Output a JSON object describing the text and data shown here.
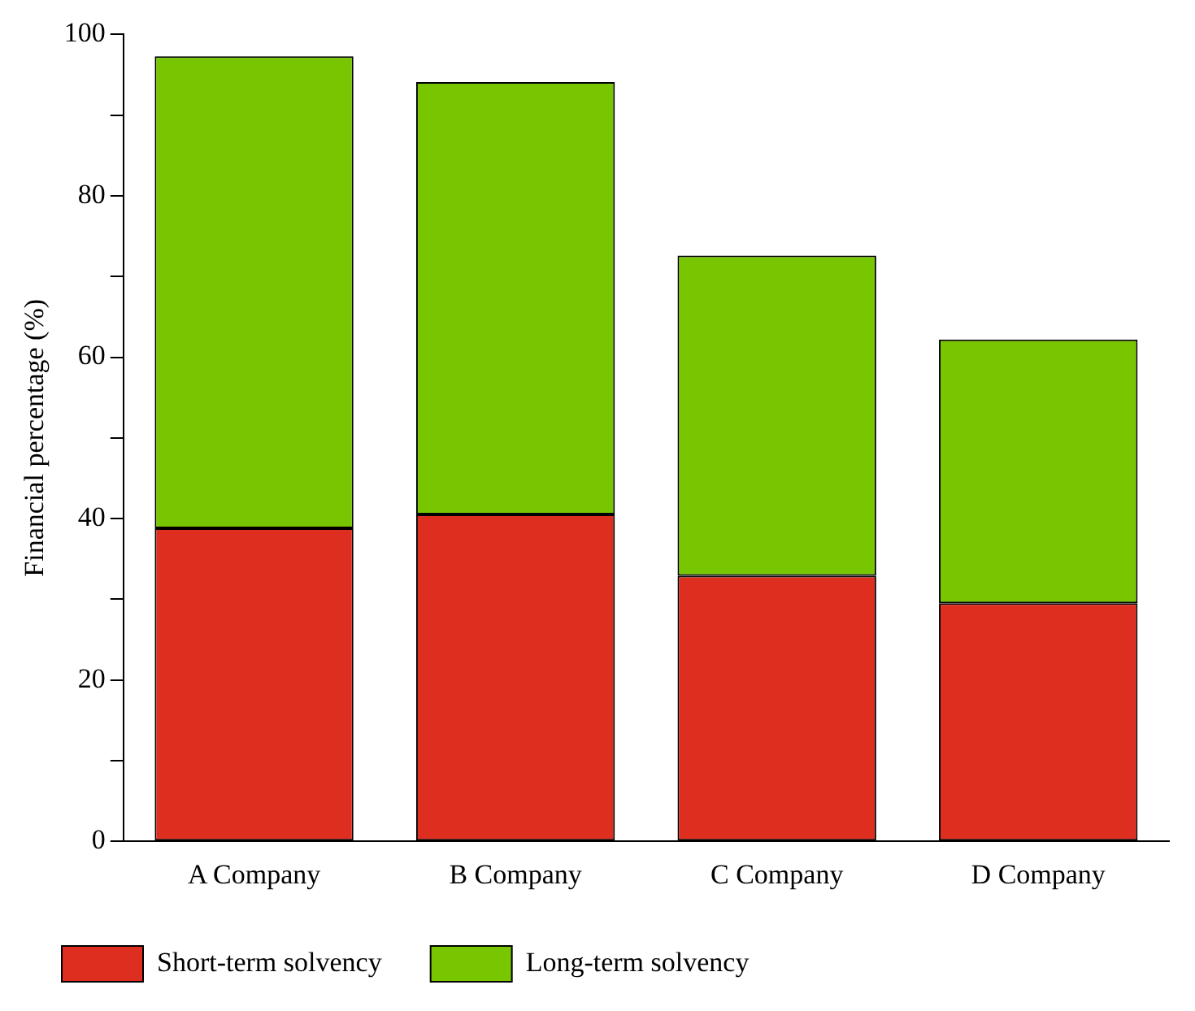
{
  "chart_data": {
    "type": "bar",
    "stacked": true,
    "ylabel": "Financial percentage (%)",
    "categories": [
      "A Company",
      "B Company",
      "C Company",
      "D Company"
    ],
    "series": [
      {
        "name": "Short-term solvency",
        "color": "#dd2e1f",
        "values": [
          38.8,
          40.5,
          32.9,
          29.5
        ]
      },
      {
        "name": "Long-term solvency",
        "color": "#77c600",
        "values": [
          58.5,
          53.6,
          39.7,
          32.7
        ]
      }
    ],
    "ylim": [
      0,
      100
    ],
    "yticks": [
      0,
      {
        "value": 10,
        "label": null
      },
      20,
      {
        "value": 30,
        "label": null
      },
      40,
      {
        "value": 50,
        "label": null
      },
      60,
      {
        "value": 70,
        "label": null
      },
      80,
      {
        "value": 90,
        "label": null
      },
      100
    ],
    "grid": false,
    "legend": "bottom left"
  }
}
